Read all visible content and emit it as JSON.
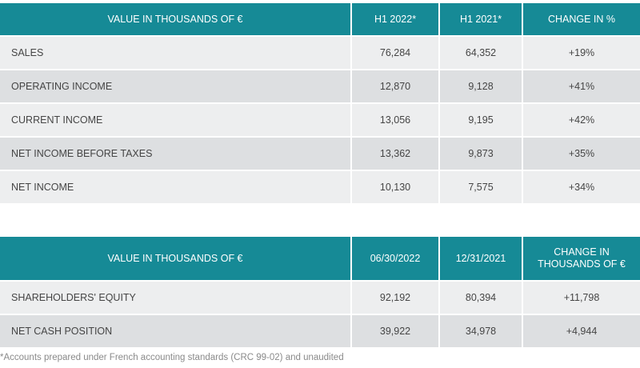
{
  "table1": {
    "headers": [
      "VALUE IN THOUSANDS OF €",
      "H1 2022*",
      "H1 2021*",
      "CHANGE IN %"
    ],
    "rows": [
      {
        "label": "SALES",
        "h1_2022": "76,284",
        "h1_2021": "64,352",
        "change": "+19%"
      },
      {
        "label": "OPERATING INCOME",
        "h1_2022": "12,870",
        "h1_2021": "9,128",
        "change": "+41%"
      },
      {
        "label": "CURRENT INCOME",
        "h1_2022": "13,056",
        "h1_2021": "9,195",
        "change": "+42%"
      },
      {
        "label": "NET INCOME BEFORE TAXES",
        "h1_2022": "13,362",
        "h1_2021": "9,873",
        "change": "+35%"
      },
      {
        "label": "NET INCOME",
        "h1_2022": "10,130",
        "h1_2021": "7,575",
        "change": "+34%"
      }
    ]
  },
  "table2": {
    "headers": [
      "VALUE IN THOUSANDS OF €",
      "06/30/2022",
      "12/31/2021",
      "CHANGE IN",
      "THOUSANDS OF €"
    ],
    "rows": [
      {
        "label": "SHAREHOLDERS' EQUITY",
        "d2022": "92,192",
        "d2021": "80,394",
        "change": "+11,798"
      },
      {
        "label": "NET CASH POSITION",
        "d2022": "39,922",
        "d2021": "34,978",
        "change": "+4,944"
      }
    ]
  },
  "footnote": "*Accounts prepared under French accounting standards (CRC 99-02) and unaudited"
}
